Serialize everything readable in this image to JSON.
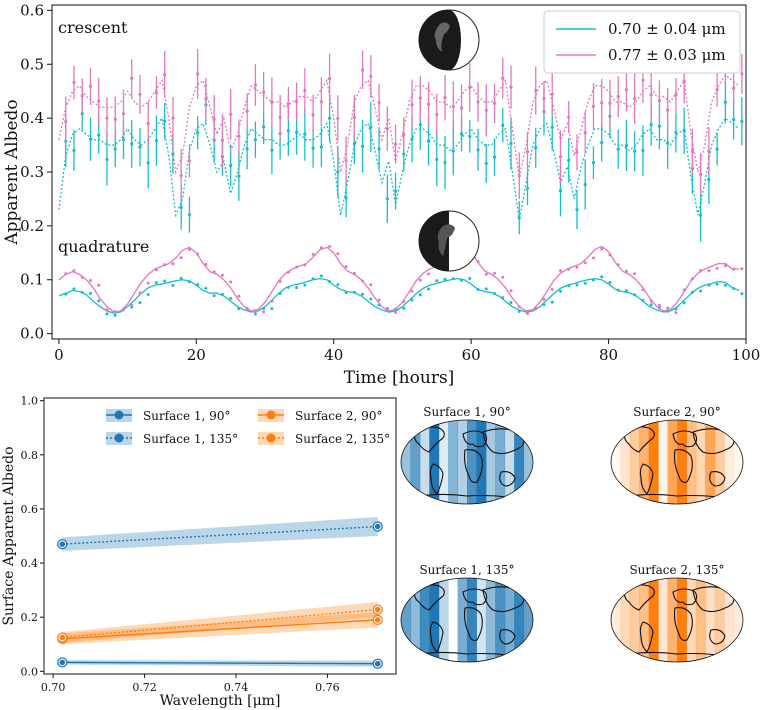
{
  "colors": {
    "cyan": "#17becf",
    "magenta": "#e377c2",
    "blue": "#1f77b4",
    "orange": "#ff7f0e"
  },
  "chart_data": [
    {
      "type": "line",
      "xlabel": "Time [hours]",
      "ylabel": "Apparent Albedo",
      "xlim": [
        -1,
        100
      ],
      "ylim": [
        -0.01,
        0.61
      ],
      "xticks": [
        "0",
        "20",
        "40",
        "60",
        "80",
        "100"
      ],
      "yticks": [
        "0.0",
        "0.1",
        "0.2",
        "0.3",
        "0.4",
        "0.5",
        "0.6"
      ],
      "annotations": [
        "crescent",
        "quadrature"
      ],
      "legend": [
        "0.70 ± 0.04 μm",
        "0.77 ± 0.03 μm"
      ],
      "legend_position": "top-right",
      "series": [
        {
          "name": "0.70 ± 0.04 μm",
          "phase": "crescent",
          "model_y": [
            0.23,
            0.33,
            0.37,
            0.38,
            0.37,
            0.36,
            0.36,
            0.35,
            0.35,
            0.36,
            0.38,
            0.36,
            0.35,
            0.36,
            0.38,
            0.4,
            0.33,
            0.22,
            0.25,
            0.34,
            0.38,
            0.39,
            0.35,
            0.3,
            0.32,
            0.26,
            0.3,
            0.35,
            0.38,
            0.37,
            0.36,
            0.36,
            0.35,
            0.35,
            0.36,
            0.37,
            0.36,
            0.36,
            0.37,
            0.39,
            0.32,
            0.22,
            0.28,
            0.35,
            0.38,
            0.39,
            0.34,
            0.28,
            0.32,
            0.24,
            0.3,
            0.35,
            0.38,
            0.38,
            0.37,
            0.35,
            0.35,
            0.34,
            0.35,
            0.37,
            0.38,
            0.36,
            0.35,
            0.35,
            0.37,
            0.38,
            0.3,
            0.21,
            0.28,
            0.35,
            0.38,
            0.39,
            0.34,
            0.28,
            0.31,
            0.25,
            0.31,
            0.35,
            0.38,
            0.38,
            0.37,
            0.35,
            0.35,
            0.34,
            0.35,
            0.37,
            0.38,
            0.36,
            0.36,
            0.35,
            0.37,
            0.38,
            0.29,
            0.22,
            0.28,
            0.35,
            0.38,
            0.4,
            0.39,
            0.38
          ]
        },
        {
          "name": "0.77 ± 0.03 μm",
          "phase": "crescent",
          "model_y": [
            0.36,
            0.42,
            0.45,
            0.46,
            0.44,
            0.43,
            0.42,
            0.42,
            0.42,
            0.43,
            0.45,
            0.43,
            0.42,
            0.43,
            0.45,
            0.47,
            0.4,
            0.3,
            0.33,
            0.42,
            0.46,
            0.47,
            0.42,
            0.37,
            0.4,
            0.34,
            0.37,
            0.42,
            0.46,
            0.45,
            0.44,
            0.43,
            0.43,
            0.42,
            0.43,
            0.44,
            0.44,
            0.43,
            0.45,
            0.47,
            0.4,
            0.3,
            0.35,
            0.43,
            0.46,
            0.47,
            0.42,
            0.36,
            0.4,
            0.32,
            0.37,
            0.43,
            0.46,
            0.46,
            0.45,
            0.43,
            0.43,
            0.42,
            0.43,
            0.45,
            0.46,
            0.44,
            0.43,
            0.43,
            0.45,
            0.47,
            0.38,
            0.29,
            0.35,
            0.43,
            0.46,
            0.47,
            0.42,
            0.36,
            0.39,
            0.33,
            0.38,
            0.43,
            0.46,
            0.46,
            0.45,
            0.43,
            0.43,
            0.42,
            0.43,
            0.45,
            0.46,
            0.44,
            0.44,
            0.43,
            0.45,
            0.47,
            0.37,
            0.3,
            0.35,
            0.43,
            0.46,
            0.48,
            0.47,
            0.46
          ]
        },
        {
          "name": "0.70 ± 0.04 μm",
          "phase": "quadrature",
          "model_y": [
            0.07,
            0.075,
            0.08,
            0.078,
            0.072,
            0.06,
            0.05,
            0.042,
            0.038,
            0.04,
            0.05,
            0.062,
            0.075,
            0.085,
            0.09,
            0.092,
            0.095,
            0.098,
            0.1,
            0.098,
            0.09,
            0.08,
            0.075,
            0.075,
            0.07,
            0.06,
            0.05,
            0.044,
            0.04,
            0.042,
            0.05,
            0.062,
            0.075,
            0.085,
            0.09,
            0.092,
            0.096,
            0.1,
            0.102,
            0.1,
            0.09,
            0.082,
            0.078,
            0.076,
            0.07,
            0.06,
            0.05,
            0.044,
            0.04,
            0.042,
            0.05,
            0.062,
            0.074,
            0.084,
            0.09,
            0.093,
            0.097,
            0.1,
            0.102,
            0.1,
            0.092,
            0.082,
            0.078,
            0.076,
            0.07,
            0.06,
            0.05,
            0.044,
            0.04,
            0.042,
            0.05,
            0.062,
            0.074,
            0.084,
            0.09,
            0.093,
            0.097,
            0.1,
            0.102,
            0.1,
            0.092,
            0.082,
            0.078,
            0.076,
            0.07,
            0.06,
            0.05,
            0.044,
            0.04,
            0.042,
            0.05,
            0.062,
            0.074,
            0.084,
            0.09,
            0.093,
            0.097,
            0.095,
            0.085,
            0.08
          ]
        },
        {
          "name": "0.77 ± 0.03 μm",
          "phase": "quadrature",
          "model_y": [
            0.1,
            0.11,
            0.115,
            0.11,
            0.1,
            0.085,
            0.065,
            0.05,
            0.04,
            0.042,
            0.055,
            0.075,
            0.095,
            0.11,
            0.12,
            0.125,
            0.13,
            0.14,
            0.155,
            0.16,
            0.15,
            0.13,
            0.115,
            0.11,
            0.1,
            0.085,
            0.065,
            0.05,
            0.042,
            0.045,
            0.058,
            0.078,
            0.098,
            0.112,
            0.12,
            0.125,
            0.13,
            0.142,
            0.156,
            0.16,
            0.15,
            0.13,
            0.116,
            0.11,
            0.1,
            0.085,
            0.066,
            0.05,
            0.042,
            0.045,
            0.058,
            0.078,
            0.098,
            0.112,
            0.12,
            0.125,
            0.13,
            0.142,
            0.156,
            0.162,
            0.152,
            0.132,
            0.116,
            0.11,
            0.1,
            0.085,
            0.066,
            0.05,
            0.042,
            0.045,
            0.058,
            0.078,
            0.098,
            0.112,
            0.12,
            0.125,
            0.13,
            0.142,
            0.156,
            0.162,
            0.152,
            0.132,
            0.116,
            0.11,
            0.1,
            0.085,
            0.066,
            0.05,
            0.042,
            0.045,
            0.058,
            0.078,
            0.098,
            0.112,
            0.12,
            0.125,
            0.13,
            0.13,
            0.12,
            0.12
          ]
        }
      ]
    },
    {
      "type": "line",
      "xlabel": "Wavelength [μm]",
      "ylabel": "Surface Apparent Albedo",
      "xlim": [
        0.698,
        0.775
      ],
      "ylim": [
        -0.01,
        1.01
      ],
      "xticks": [
        "0.70",
        "0.72",
        "0.74",
        "0.76"
      ],
      "yticks": [
        "0.0",
        "0.2",
        "0.4",
        "0.6",
        "0.8",
        "1.0"
      ],
      "legend": [
        "Surface 1, 90°",
        "Surface 1, 135°",
        "Surface 2, 90°",
        "Surface 2, 135°"
      ],
      "legend_position": "top",
      "x": [
        0.702,
        0.771
      ],
      "series": [
        {
          "name": "Surface 1, 90°",
          "values": [
            0.033,
            0.028
          ],
          "band": 0.008
        },
        {
          "name": "Surface 1, 135°",
          "values": [
            0.47,
            0.535
          ],
          "band": 0.025
        },
        {
          "name": "Surface 2, 90°",
          "values": [
            0.12,
            0.19
          ],
          "band": 0.02
        },
        {
          "name": "Surface 2, 135°",
          "values": [
            0.125,
            0.228
          ],
          "band": 0.02
        }
      ]
    }
  ],
  "maps": [
    {
      "title": "Surface 1, 90°"
    },
    {
      "title": "Surface 2, 90°"
    },
    {
      "title": "Surface 1, 135°"
    },
    {
      "title": "Surface 2, 135°"
    }
  ]
}
